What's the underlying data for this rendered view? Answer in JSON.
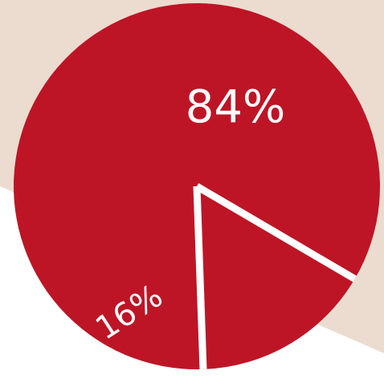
{
  "chart_data": {
    "type": "pie",
    "categories": [
      "",
      ""
    ],
    "values": [
      84,
      16
    ],
    "labels": [
      "84%",
      "16%"
    ],
    "slice_color": "#bd1526",
    "separator_color": "#ffffff",
    "background_color": "#ebdccf"
  }
}
